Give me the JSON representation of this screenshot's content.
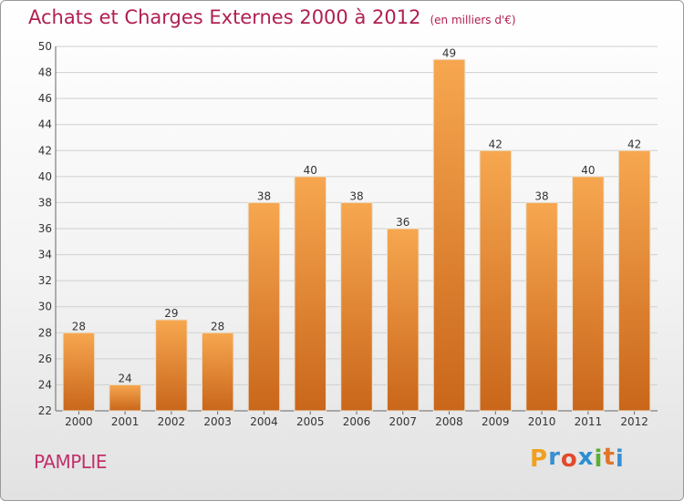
{
  "header": {
    "title": "Achats et Charges Externes 2000 à 2012",
    "unit": "(en milliers d'€)"
  },
  "footer": {
    "commune": "PAMPLIE",
    "logo": [
      "P",
      "r",
      "o",
      "x",
      "i",
      "t",
      "i"
    ],
    "logo_colors": [
      "#f0a020",
      "#3a8fd0",
      "#e24a2a",
      "#2a8fd0",
      "#5cb030",
      "#e0762a",
      "#3a8fd0"
    ]
  },
  "colors": {
    "bar_top": "#f7a750",
    "bar_bottom": "#c9661a",
    "grid": "#cfcfcf"
  },
  "chart_data": {
    "type": "bar",
    "categories": [
      "2000",
      "2001",
      "2002",
      "2003",
      "2004",
      "2005",
      "2006",
      "2007",
      "2008",
      "2009",
      "2010",
      "2011",
      "2012"
    ],
    "values": [
      28,
      24,
      29,
      28,
      38,
      40,
      38,
      36,
      49,
      42,
      38,
      40,
      42
    ],
    "title": "Achats et Charges Externes 2000 à 2012",
    "ylim": [
      22,
      50
    ],
    "yticks": [
      22,
      24,
      26,
      28,
      30,
      32,
      34,
      36,
      38,
      40,
      42,
      44,
      46,
      48,
      50
    ],
    "grid": true,
    "legend": "none"
  }
}
